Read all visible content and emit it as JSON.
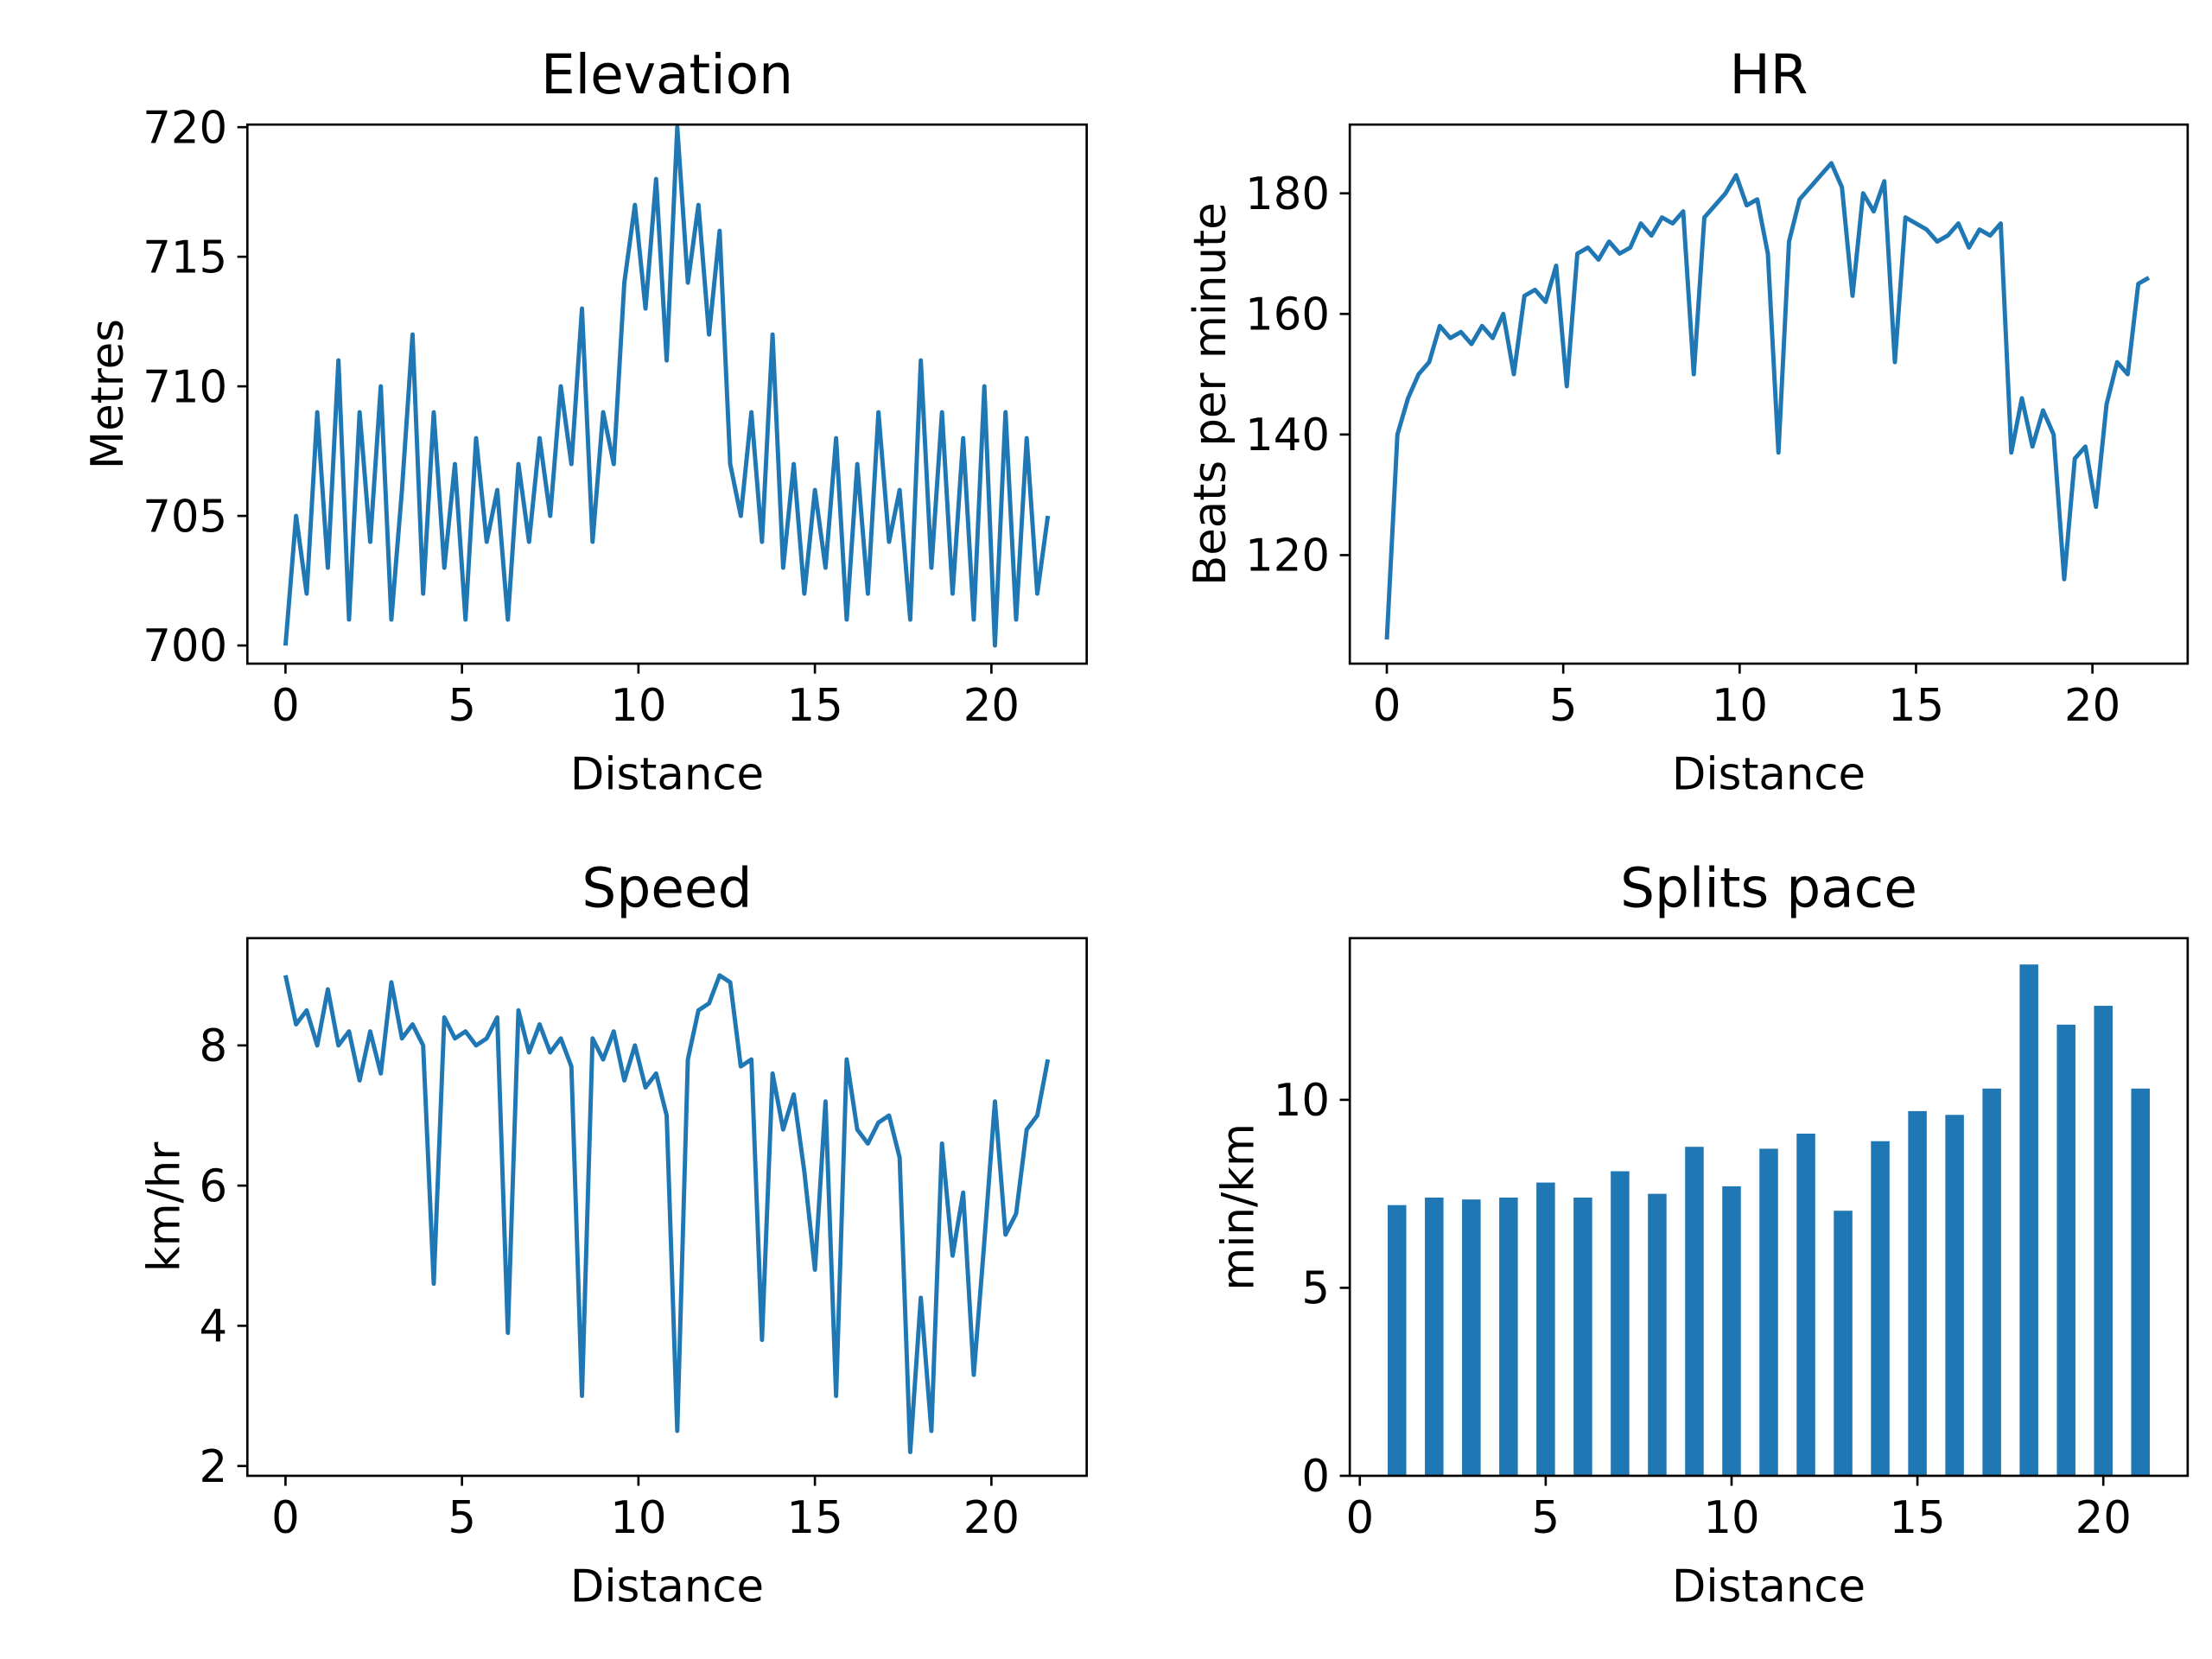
{
  "chart_data": [
    {
      "type": "line",
      "title": "Elevation",
      "xlabel": "Distance",
      "ylabel": "Metres",
      "color": "#1f77b4",
      "x": [
        0,
        0.3,
        0.6,
        0.9,
        1.2,
        1.5,
        1.8,
        2.1,
        2.4,
        2.7,
        3.0,
        3.3,
        3.6,
        3.9,
        4.2,
        4.5,
        4.8,
        5.1,
        5.4,
        5.7,
        6.0,
        6.3,
        6.6,
        6.9,
        7.2,
        7.5,
        7.8,
        8.1,
        8.4,
        8.7,
        9.0,
        9.3,
        9.6,
        9.9,
        10.2,
        10.5,
        10.8,
        11.1,
        11.4,
        11.7,
        12.0,
        12.3,
        12.6,
        12.9,
        13.2,
        13.5,
        13.8,
        14.1,
        14.4,
        14.7,
        15.0,
        15.3,
        15.6,
        15.9,
        16.2,
        16.5,
        16.8,
        17.1,
        17.4,
        17.7,
        18.0,
        18.3,
        18.6,
        18.9,
        19.2,
        19.5,
        19.8,
        20.1,
        20.4,
        20.7,
        21.0,
        21.3,
        21.6
      ],
      "values": [
        700,
        705,
        702,
        709,
        703,
        711,
        701,
        709,
        704,
        710,
        701,
        706,
        712,
        702,
        709,
        703,
        707,
        701,
        708,
        704,
        706,
        701,
        707,
        704,
        708,
        705,
        710,
        707,
        713,
        704,
        709,
        707,
        714,
        717,
        713,
        718,
        711,
        720,
        714,
        717,
        712,
        716,
        707,
        705,
        709,
        704,
        712,
        703,
        707,
        702,
        706,
        703,
        708,
        701,
        707,
        702,
        709,
        704,
        706,
        701,
        711,
        703,
        709,
        702,
        708,
        701,
        710,
        700,
        709,
        701,
        708,
        702,
        705
      ],
      "xlim": [
        -1.08,
        22.7
      ],
      "ylim": [
        699.3,
        720.1
      ],
      "xticks": [
        0,
        5,
        10,
        15,
        20
      ],
      "yticks": [
        700,
        705,
        710,
        715,
        720
      ]
    },
    {
      "type": "line",
      "title": "HR",
      "xlabel": "Distance",
      "ylabel": "Beats per minute",
      "color": "#1f77b4",
      "x": [
        0,
        0.3,
        0.6,
        0.9,
        1.2,
        1.5,
        1.8,
        2.1,
        2.4,
        2.7,
        3.0,
        3.3,
        3.6,
        3.9,
        4.2,
        4.5,
        4.8,
        5.1,
        5.4,
        5.7,
        6.0,
        6.3,
        6.6,
        6.9,
        7.2,
        7.5,
        7.8,
        8.1,
        8.4,
        8.7,
        9.0,
        9.3,
        9.6,
        9.9,
        10.2,
        10.5,
        10.8,
        11.1,
        11.4,
        11.7,
        12.0,
        12.3,
        12.6,
        12.9,
        13.2,
        13.5,
        13.8,
        14.1,
        14.4,
        14.7,
        15.0,
        15.3,
        15.6,
        15.9,
        16.2,
        16.5,
        16.8,
        17.1,
        17.4,
        17.7,
        18.0,
        18.3,
        18.6,
        18.9,
        19.2,
        19.5,
        19.8,
        20.1,
        20.4,
        20.7,
        21.0,
        21.3,
        21.6
      ],
      "values": [
        106,
        140,
        146,
        150,
        152,
        158,
        156,
        157,
        155,
        158,
        156,
        160,
        150,
        163,
        164,
        162,
        168,
        148,
        170,
        171,
        169,
        172,
        170,
        171,
        175,
        173,
        176,
        175,
        177,
        150,
        176,
        178,
        180,
        183,
        178,
        179,
        170,
        137,
        172,
        179,
        181,
        183,
        185,
        181,
        163,
        180,
        177,
        182,
        152,
        176,
        175,
        174,
        172,
        173,
        175,
        171,
        174,
        173,
        175,
        137,
        146,
        138,
        144,
        140,
        116,
        136,
        138,
        128,
        145,
        152,
        150,
        165,
        166
      ],
      "xlim": [
        -1.05,
        22.7
      ],
      "ylim": [
        102,
        191.4
      ],
      "xticks": [
        0,
        5,
        10,
        15,
        20
      ],
      "yticks": [
        120,
        140,
        160,
        180
      ]
    },
    {
      "type": "line",
      "title": "Speed",
      "xlabel": "Distance",
      "ylabel": "km/hr",
      "color": "#1f77b4",
      "x": [
        0,
        0.3,
        0.6,
        0.9,
        1.2,
        1.5,
        1.8,
        2.1,
        2.4,
        2.7,
        3.0,
        3.3,
        3.6,
        3.9,
        4.2,
        4.5,
        4.8,
        5.1,
        5.4,
        5.7,
        6.0,
        6.3,
        6.6,
        6.9,
        7.2,
        7.5,
        7.8,
        8.1,
        8.4,
        8.7,
        9.0,
        9.3,
        9.6,
        9.9,
        10.2,
        10.5,
        10.8,
        11.1,
        11.4,
        11.7,
        12.0,
        12.3,
        12.6,
        12.9,
        13.2,
        13.5,
        13.8,
        14.1,
        14.4,
        14.7,
        15.0,
        15.3,
        15.6,
        15.9,
        16.2,
        16.5,
        16.8,
        17.1,
        17.4,
        17.7,
        18.0,
        18.3,
        18.6,
        18.9,
        19.2,
        19.5,
        19.8,
        20.1,
        20.4,
        20.7,
        21.0,
        21.3,
        21.6
      ],
      "values": [
        9.0,
        8.3,
        8.5,
        8.0,
        8.8,
        8.0,
        8.2,
        7.5,
        8.2,
        7.6,
        8.9,
        8.1,
        8.3,
        8.0,
        4.6,
        8.4,
        8.1,
        8.2,
        8.0,
        8.1,
        8.4,
        3.9,
        8.5,
        7.9,
        8.3,
        7.9,
        8.1,
        7.7,
        3.0,
        8.1,
        7.8,
        8.2,
        7.5,
        8.0,
        7.4,
        7.6,
        7.0,
        2.5,
        7.8,
        8.5,
        8.6,
        9.0,
        8.9,
        7.7,
        7.8,
        3.8,
        7.6,
        6.8,
        7.3,
        6.2,
        4.8,
        7.2,
        3.0,
        7.8,
        6.8,
        6.6,
        6.9,
        7.0,
        6.4,
        2.2,
        4.4,
        2.5,
        6.6,
        5.0,
        5.9,
        3.3,
        5.2,
        7.2,
        5.3,
        5.6,
        6.8,
        7.0,
        7.8
      ],
      "xlim": [
        -1.08,
        22.7
      ],
      "ylim": [
        1.86,
        9.53
      ],
      "xticks": [
        0,
        5,
        10,
        15,
        20
      ],
      "yticks": [
        2,
        4,
        6,
        8
      ]
    },
    {
      "type": "bar",
      "title": "Splits pace",
      "xlabel": "Distance",
      "ylabel": "min/km",
      "color": "#1f77b4",
      "x": [
        1,
        2,
        3,
        4,
        5,
        6,
        7,
        8,
        9,
        10,
        11,
        12,
        13,
        14,
        15,
        16,
        17,
        18,
        19,
        20,
        21
      ],
      "values": [
        7.2,
        7.4,
        7.35,
        7.4,
        7.8,
        7.4,
        8.1,
        7.5,
        8.75,
        7.7,
        8.7,
        9.1,
        7.05,
        8.9,
        9.7,
        9.6,
        10.3,
        13.6,
        12.0,
        12.5,
        10.3
      ],
      "xlim": [
        -0.27,
        22.27
      ],
      "ylim": [
        0,
        14.3
      ],
      "xticks": [
        0,
        5,
        10,
        15,
        20
      ],
      "yticks": [
        0,
        5,
        10
      ]
    }
  ]
}
